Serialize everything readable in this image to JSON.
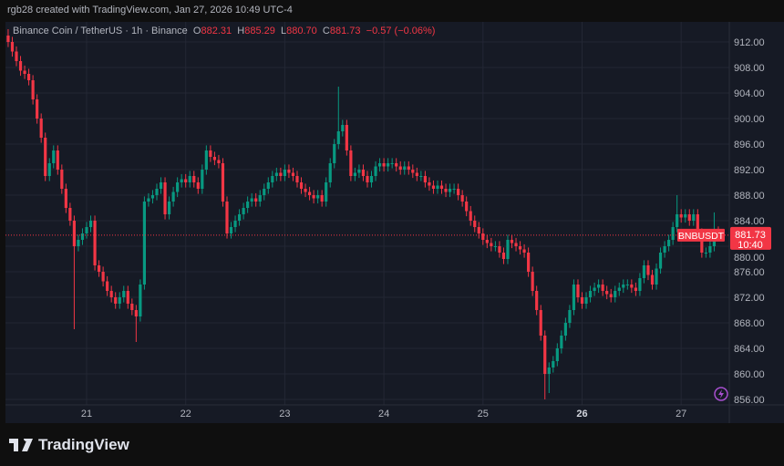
{
  "credit": "rgb28 created with TradingView.com, Jan 27, 2026 10:49 UTC-4",
  "legend": {
    "symbol": "Binance Coin / TetherUS · 1h · Binance",
    "o_label": "O",
    "o": "882.31",
    "h_label": "H",
    "h": "885.29",
    "l_label": "L",
    "l": "880.70",
    "c_label": "C",
    "c": "881.73",
    "change": "−0.57 (−0.06%)"
  },
  "footer": {
    "brand": "TradingView"
  },
  "colors": {
    "up": "#089981",
    "down": "#f23645",
    "background": "#161a25",
    "grid": "#232734",
    "text": "#b2b5be"
  },
  "chart_data": {
    "type": "candlestick",
    "interval": "1h",
    "ylim": [
      855,
      914
    ],
    "y_ticks": [
      "912.00",
      "908.00",
      "904.00",
      "900.00",
      "896.00",
      "892.00",
      "888.00",
      "884.00",
      "880.00",
      "876.00",
      "872.00",
      "868.00",
      "864.00",
      "860.00",
      "856.00"
    ],
    "x_ticks": [
      "21",
      "22",
      "23",
      "24",
      "25",
      "26",
      "27"
    ],
    "x_ticks_bold": [
      "26"
    ],
    "first_candle_hour_offset_before_21": 19,
    "current_price": "881.73",
    "current_label": "BNBUSDT",
    "countdown": "10:40",
    "first_open": 913,
    "closes": [
      912,
      910.5,
      909,
      907.5,
      907,
      906,
      903,
      900,
      897,
      891,
      893,
      895,
      892,
      889,
      886,
      884,
      880,
      881,
      882,
      883,
      884,
      877,
      876,
      874.5,
      873,
      872,
      871,
      872,
      873,
      871,
      870,
      869,
      874,
      887,
      887.5,
      888,
      889,
      890,
      885,
      887,
      888.5,
      890,
      890.5,
      890,
      891,
      890,
      889,
      892,
      895,
      894,
      893.5,
      893,
      887,
      882,
      883,
      884,
      885,
      886,
      887,
      887.5,
      887,
      888,
      889,
      890,
      891,
      891.5,
      891,
      892,
      891.5,
      891,
      890,
      889,
      888.5,
      888,
      887.5,
      888,
      887,
      890,
      893,
      896,
      898,
      899,
      895,
      891,
      891.5,
      892,
      891,
      890,
      891,
      892.5,
      893,
      892.5,
      893,
      893,
      892.5,
      892,
      892.5,
      892,
      891.5,
      891,
      891,
      890,
      889.5,
      889,
      889.5,
      889,
      888.5,
      889,
      889,
      888,
      887,
      885.5,
      884,
      883,
      882,
      881,
      880.5,
      880,
      880,
      879,
      878,
      881,
      880.5,
      880,
      879.5,
      879,
      876,
      873,
      870,
      866,
      860,
      861,
      862,
      864,
      866,
      868,
      870,
      874,
      872,
      871,
      872,
      873,
      873.5,
      874,
      873,
      872.5,
      872,
      873,
      873.5,
      874,
      874,
      873.5,
      873,
      875,
      877,
      875.5,
      874,
      876.5,
      879,
      880,
      881,
      883,
      885,
      884.5,
      885,
      884,
      885,
      882,
      879,
      879,
      880,
      882.3,
      881.73
    ],
    "extreme_lows": {
      "16": 867,
      "31": 865,
      "130": 856,
      "131": 857
    },
    "extreme_highs": {
      "0": 914,
      "80": 905,
      "162": 888,
      "171": 885.3
    }
  }
}
